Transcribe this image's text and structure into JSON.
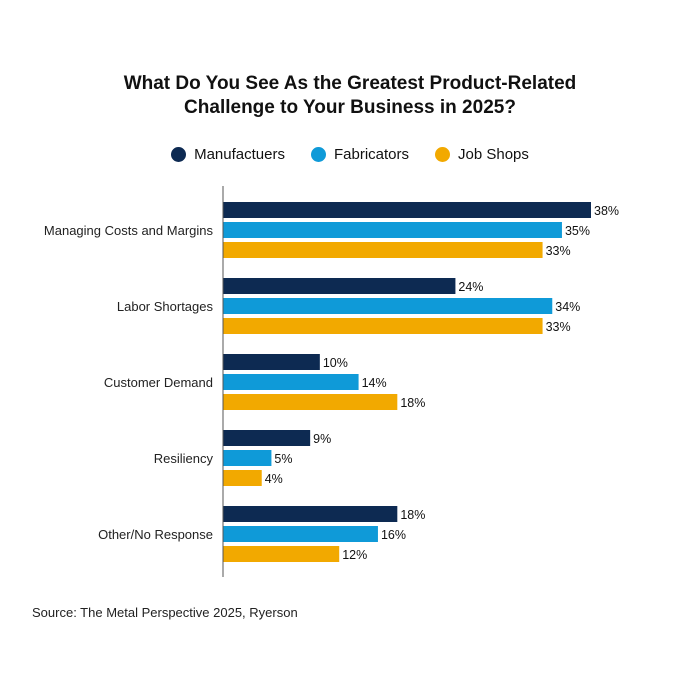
{
  "chart_data": {
    "type": "bar",
    "orientation": "horizontal",
    "title_lines": [
      "What Do You See As the Greatest Product-Related",
      "Challenge to Your Business in 2025?"
    ],
    "categories": [
      "Managing Costs and Margins",
      "Labor Shortages",
      "Customer Demand",
      "Resiliency",
      "Other/No Response"
    ],
    "series": [
      {
        "name": "Manufactuers",
        "color": "#0d2a52",
        "values": [
          38,
          24,
          10,
          9,
          18
        ]
      },
      {
        "name": "Fabricators",
        "color": "#0f9ad8",
        "values": [
          35,
          34,
          14,
          5,
          16
        ]
      },
      {
        "name": "Job Shops",
        "color": "#f2a900",
        "values": [
          33,
          33,
          18,
          4,
          12
        ]
      }
    ],
    "value_suffix": "%",
    "xlim": [
      0,
      38
    ],
    "legend_position": "top",
    "source": "Source: The Metal Perspective 2025, Ryerson"
  }
}
